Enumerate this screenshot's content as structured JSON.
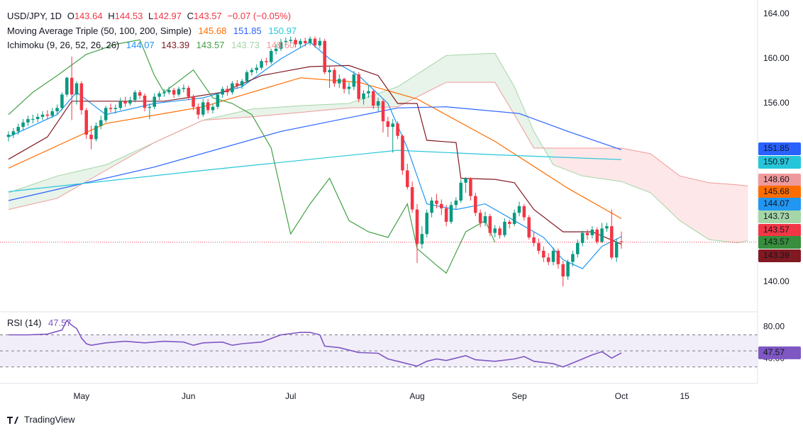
{
  "header": {
    "symbol": "USD/JPY, 1D",
    "o_label": "O",
    "open": "143.64",
    "h_label": "H",
    "high": "144.53",
    "l_label": "L",
    "low": "142.97",
    "c_label": "C",
    "close": "143.57",
    "change": "−0.07 (−0.05%)"
  },
  "indicators": [
    {
      "name": "Moving Average Triple (50, 100, 200, Simple)",
      "values": [
        "145.68",
        "151.85",
        "150.97"
      ]
    },
    {
      "name": "Ichimoku (9, 26, 52, 26, 26)",
      "values": [
        "144.07",
        "143.39",
        "143.57",
        "143.73",
        "148.60"
      ]
    }
  ],
  "brand": "TradingView",
  "chart_data": [
    {
      "type": "candlestick",
      "up_color": "#089981",
      "down_color": "#f23645",
      "xlim": [
        -1.75,
        154
      ],
      "ylim": [
        137.33,
        165.27
      ],
      "xticks": [
        {
          "value": 15,
          "label": "May"
        },
        {
          "value": 37,
          "label": "Jun"
        },
        {
          "value": 58,
          "label": "Jul"
        },
        {
          "value": 84,
          "label": "Aug"
        },
        {
          "value": 105,
          "label": "Sep"
        },
        {
          "value": 126,
          "label": "Oct"
        },
        {
          "value": 139,
          "label": "15"
        }
      ],
      "yticks": [
        {
          "value": 164,
          "label": "164.00"
        },
        {
          "value": 160,
          "label": "160.00"
        },
        {
          "value": 156,
          "label": "156.00"
        },
        {
          "value": 140,
          "label": "140.00"
        }
      ],
      "candles": [
        [
          153.0,
          153.5,
          152.6,
          153.2
        ],
        [
          153.2,
          153.8,
          152.9,
          153.5
        ],
        [
          153.5,
          154.2,
          153.2,
          153.9
        ],
        [
          153.9,
          154.6,
          153.6,
          154.3
        ],
        [
          154.3,
          154.9,
          154.0,
          154.6
        ],
        [
          154.6,
          155.0,
          154.2,
          154.6
        ],
        [
          154.6,
          155.1,
          154.3,
          154.8
        ],
        [
          154.8,
          155.3,
          154.5,
          155.0
        ],
        [
          155.0,
          155.4,
          154.6,
          154.9
        ],
        [
          154.9,
          155.6,
          154.7,
          155.3
        ],
        [
          155.3,
          155.9,
          155.0,
          155.6
        ],
        [
          155.6,
          157.0,
          155.4,
          156.8
        ],
        [
          156.8,
          158.4,
          156.6,
          158.3
        ],
        [
          158.3,
          160.2,
          154.5,
          156.8
        ],
        [
          156.8,
          158.0,
          155.9,
          157.8
        ],
        [
          157.8,
          158.0,
          155.0,
          155.4
        ],
        [
          155.4,
          155.6,
          152.8,
          153.2
        ],
        [
          153.2,
          154.0,
          151.9,
          152.8
        ],
        [
          152.8,
          154.3,
          152.6,
          154.0
        ],
        [
          154.0,
          154.9,
          153.7,
          154.5
        ],
        [
          154.5,
          155.8,
          154.3,
          155.6
        ],
        [
          155.6,
          156.0,
          155.2,
          155.5
        ],
        [
          155.5,
          155.9,
          155.1,
          155.6
        ],
        [
          155.6,
          156.5,
          155.4,
          156.2
        ],
        [
          156.2,
          156.6,
          155.7,
          156.0
        ],
        [
          156.0,
          156.6,
          155.8,
          156.3
        ],
        [
          156.3,
          157.2,
          156.1,
          157.0
        ],
        [
          157.0,
          157.2,
          156.4,
          156.7
        ],
        [
          156.7,
          156.9,
          155.3,
          155.6
        ],
        [
          155.6,
          156.0,
          154.6,
          155.7
        ],
        [
          155.7,
          156.9,
          155.5,
          156.6
        ],
        [
          156.6,
          157.1,
          156.3,
          156.9
        ],
        [
          156.9,
          157.3,
          156.6,
          157.0
        ],
        [
          157.0,
          157.5,
          156.8,
          157.2
        ],
        [
          157.2,
          157.4,
          156.5,
          156.8
        ],
        [
          156.8,
          157.5,
          156.6,
          157.3
        ],
        [
          157.3,
          157.7,
          157.0,
          157.4
        ],
        [
          157.4,
          157.6,
          156.3,
          156.6
        ],
        [
          156.6,
          156.8,
          155.4,
          155.7
        ],
        [
          155.7,
          156.0,
          154.6,
          155.0
        ],
        [
          155.0,
          156.4,
          154.8,
          156.1
        ],
        [
          156.1,
          156.4,
          155.1,
          155.4
        ],
        [
          155.4,
          156.0,
          155.1,
          155.7
        ],
        [
          155.7,
          157.0,
          155.5,
          156.8
        ],
        [
          156.8,
          157.5,
          156.5,
          157.3
        ],
        [
          157.3,
          157.6,
          156.7,
          157.0
        ],
        [
          157.0,
          158.0,
          156.8,
          157.8
        ],
        [
          157.8,
          158.1,
          157.3,
          157.6
        ],
        [
          157.6,
          158.2,
          157.3,
          158.0
        ],
        [
          158.0,
          159.0,
          157.8,
          158.8
        ],
        [
          158.8,
          159.2,
          158.5,
          159.0
        ],
        [
          159.0,
          159.5,
          158.7,
          159.2
        ],
        [
          159.2,
          160.0,
          159.0,
          159.8
        ],
        [
          159.8,
          160.1,
          159.4,
          159.7
        ],
        [
          159.7,
          160.9,
          159.5,
          160.7
        ],
        [
          160.7,
          161.3,
          160.4,
          160.9
        ],
        [
          160.9,
          161.8,
          160.7,
          161.5
        ],
        [
          161.5,
          161.9,
          161.2,
          161.6
        ],
        [
          161.6,
          162.0,
          161.3,
          161.7
        ],
        [
          161.7,
          161.9,
          161.0,
          161.3
        ],
        [
          161.3,
          161.8,
          161.0,
          161.6
        ],
        [
          161.6,
          161.9,
          161.1,
          161.4
        ],
        [
          161.4,
          162.0,
          161.2,
          161.8
        ],
        [
          161.8,
          162.0,
          161.0,
          161.2
        ],
        [
          161.2,
          161.9,
          160.9,
          161.6
        ],
        [
          161.6,
          161.8,
          158.6,
          158.8
        ],
        [
          158.8,
          159.4,
          157.4,
          159.0
        ],
        [
          159.0,
          159.2,
          157.5,
          157.8
        ],
        [
          157.8,
          158.6,
          157.4,
          158.2
        ],
        [
          158.2,
          158.3,
          156.9,
          157.3
        ],
        [
          157.3,
          157.9,
          156.8,
          157.5
        ],
        [
          157.5,
          158.9,
          157.2,
          158.6
        ],
        [
          158.6,
          158.8,
          156.1,
          156.4
        ],
        [
          156.4,
          157.2,
          155.9,
          156.9
        ],
        [
          156.9,
          157.6,
          156.5,
          157.1
        ],
        [
          157.1,
          157.3,
          155.5,
          155.8
        ],
        [
          155.8,
          156.5,
          155.3,
          156.2
        ],
        [
          156.2,
          156.4,
          153.4,
          154.4
        ],
        [
          154.4,
          154.8,
          153.0,
          153.9
        ],
        [
          153.9,
          154.6,
          151.6,
          154.2
        ],
        [
          154.2,
          154.4,
          152.8,
          153.1
        ],
        [
          153.1,
          153.2,
          149.6,
          150.0
        ],
        [
          150.0,
          150.6,
          148.3,
          148.5
        ],
        [
          148.5,
          149.0,
          146.2,
          146.5
        ],
        [
          146.5,
          147.0,
          141.7,
          143.4
        ],
        [
          143.4,
          145.0,
          143.0,
          144.3
        ],
        [
          144.3,
          146.5,
          144.0,
          146.2
        ],
        [
          146.2,
          147.6,
          145.8,
          147.3
        ],
        [
          147.3,
          147.9,
          146.6,
          147.0
        ],
        [
          147.0,
          147.4,
          146.0,
          146.6
        ],
        [
          146.6,
          146.9,
          145.0,
          145.4
        ],
        [
          145.4,
          147.2,
          145.2,
          146.9
        ],
        [
          146.9,
          147.6,
          146.5,
          147.3
        ],
        [
          147.3,
          149.2,
          147.1,
          148.9
        ],
        [
          148.9,
          149.4,
          148.0,
          149.3
        ],
        [
          149.3,
          149.4,
          147.3,
          147.7
        ],
        [
          147.7,
          148.0,
          145.9,
          146.2
        ],
        [
          146.2,
          146.5,
          144.9,
          145.3
        ],
        [
          145.3,
          146.3,
          145.0,
          145.9
        ],
        [
          145.9,
          146.1,
          144.1,
          144.4
        ],
        [
          144.4,
          145.1,
          144.0,
          144.8
        ],
        [
          144.8,
          145.0,
          143.9,
          144.2
        ],
        [
          144.2,
          145.7,
          144.0,
          145.4
        ],
        [
          145.4,
          145.6,
          144.8,
          145.2
        ],
        [
          145.2,
          146.5,
          145.0,
          146.2
        ],
        [
          146.2,
          147.2,
          145.9,
          146.8
        ],
        [
          146.8,
          147.0,
          145.5,
          145.8
        ],
        [
          145.8,
          146.0,
          143.8,
          144.0
        ],
        [
          144.0,
          144.5,
          143.2,
          143.5
        ],
        [
          143.5,
          143.9,
          142.5,
          142.8
        ],
        [
          142.8,
          143.2,
          141.8,
          142.2
        ],
        [
          142.2,
          142.6,
          141.5,
          141.8
        ],
        [
          141.8,
          143.1,
          141.5,
          142.8
        ],
        [
          142.8,
          143.0,
          141.2,
          141.6
        ],
        [
          141.6,
          141.9,
          139.6,
          140.5
        ],
        [
          140.5,
          142.0,
          140.2,
          141.8
        ],
        [
          141.8,
          142.8,
          141.4,
          142.5
        ],
        [
          142.5,
          143.8,
          142.2,
          143.5
        ],
        [
          143.5,
          144.6,
          143.2,
          144.4
        ],
        [
          144.4,
          144.7,
          143.8,
          144.2
        ],
        [
          144.2,
          145.0,
          143.9,
          144.7
        ],
        [
          144.7,
          144.9,
          143.4,
          143.6
        ],
        [
          143.6,
          145.3,
          143.5,
          144.8
        ],
        [
          144.8,
          145.3,
          144.5,
          145.0
        ],
        [
          145.0,
          146.5,
          142.0,
          142.2
        ],
        [
          142.2,
          143.9,
          141.8,
          143.6
        ],
        [
          143.64,
          144.53,
          142.97,
          143.57
        ]
      ],
      "series": [
        {
          "color": "#ff6d00",
          "x": [
            0,
            20,
            40,
            60,
            72,
            84,
            100,
            115,
            126
          ],
          "values": [
            150.2,
            154.2,
            155.7,
            158.3,
            157.9,
            156.4,
            152.6,
            148.4,
            145.68
          ]
        },
        {
          "color": "#2962ff",
          "x": [
            0,
            30,
            56,
            80,
            90,
            105,
            115,
            126
          ],
          "values": [
            147.3,
            150.3,
            153.5,
            155.6,
            155.7,
            155.1,
            153.5,
            151.85
          ]
        },
        {
          "color": "#26c6da",
          "x": [
            0,
            40,
            80,
            100,
            126
          ],
          "values": [
            148.1,
            150.0,
            151.8,
            151.4,
            150.97
          ]
        },
        {
          "color": "#2196f3",
          "x": [
            0,
            10,
            14,
            20,
            30,
            40,
            48,
            56,
            62,
            66,
            72,
            78,
            82,
            86,
            92,
            98,
            104,
            110,
            114,
            118,
            122,
            126
          ],
          "values": [
            153,
            155,
            157,
            155,
            156,
            156.5,
            157.5,
            160,
            161.5,
            160,
            158.5,
            156,
            152,
            147,
            146.5,
            147,
            145.5,
            144,
            142,
            141.2,
            143.2,
            144.07
          ]
        },
        {
          "color": "#801922",
          "x": [
            0,
            8,
            13,
            32,
            44,
            52,
            62,
            70,
            76,
            80,
            84,
            86,
            92,
            93,
            100,
            104,
            108,
            114,
            120,
            126
          ],
          "values": [
            151,
            153,
            156.2,
            156.2,
            157,
            158.5,
            159.3,
            159.4,
            158.5,
            156,
            156,
            152.7,
            152.5,
            149.3,
            149.2,
            148.9,
            146.5,
            144.5,
            144.5,
            143.39
          ]
        },
        {
          "color": "#43a047",
          "x": [
            0,
            5,
            10,
            16,
            22,
            27,
            30,
            32,
            38,
            42,
            46,
            50,
            54,
            58,
            62,
            66,
            70,
            74,
            78,
            82,
            84,
            88,
            90,
            94,
            98,
            100
          ],
          "values": [
            155,
            157,
            158.5,
            160.4,
            161.3,
            161.7,
            158.5,
            157,
            159,
            156.5,
            156,
            155,
            152,
            144.3,
            147,
            149.3,
            145.5,
            144.5,
            144,
            147,
            143,
            141.5,
            140.8,
            144.5,
            145.5,
            143.57
          ]
        }
      ],
      "cloud": {
        "x": [
          0,
          10,
          20,
          30,
          40,
          50,
          60,
          70,
          80,
          90,
          100,
          104,
          108,
          112,
          118,
          126,
          132,
          138,
          144,
          150,
          152
        ],
        "span_a": {
          "color": "#a5d6a7",
          "values": [
            148,
            149.5,
            150.5,
            152.5,
            154.5,
            155.5,
            155.8,
            156,
            157.5,
            160.3,
            160.5,
            157.5,
            153.5,
            150.5,
            149.5,
            149,
            148,
            145.5,
            143.8,
            143.5,
            143.73
          ]
        },
        "span_b": {
          "color": "#ef9a9a",
          "values": [
            146.5,
            147.5,
            150,
            152.5,
            154.5,
            154.8,
            155.2,
            155.6,
            155.7,
            157.9,
            157.9,
            155,
            152,
            152,
            152,
            152,
            151.5,
            149.5,
            148.9,
            148.7,
            148.6
          ]
        },
        "up_fill": "rgba(67,160,71,0.12)",
        "down_fill": "rgba(242,54,69,0.12)"
      }
    },
    {
      "type": "line",
      "title": "RSI (14)",
      "value_label": "47.57",
      "color": "#7e57c2",
      "band_fill": "rgba(126,87,194,0.1)",
      "xlim": [
        -1.75,
        154
      ],
      "ylim": [
        9.46,
        98.75
      ],
      "yticks": [
        {
          "value": 80,
          "label": "80.00"
        },
        {
          "value": 40,
          "label": "40.00"
        }
      ],
      "levels": [
        70,
        50,
        30
      ],
      "x": [
        0,
        4,
        8,
        11,
        12,
        13,
        14,
        15,
        16,
        17,
        20,
        24,
        28,
        32,
        36,
        38,
        40,
        44,
        46,
        48,
        52,
        56,
        60,
        62,
        64,
        65,
        68,
        72,
        76,
        78,
        80,
        84,
        86,
        88,
        90,
        94,
        96,
        100,
        104,
        106,
        108,
        112,
        114,
        118,
        120,
        122,
        124,
        126
      ],
      "values": [
        70,
        70,
        71,
        76,
        88,
        82,
        78,
        66,
        59,
        57,
        60,
        62,
        60,
        62,
        61,
        57,
        60,
        61,
        57,
        59,
        61,
        70,
        73,
        73,
        70,
        56,
        54,
        48,
        47,
        40,
        37,
        31,
        37,
        40,
        38,
        44,
        39,
        37,
        40,
        43,
        37,
        34,
        30,
        40,
        45,
        49,
        41,
        47.57
      ]
    }
  ]
}
